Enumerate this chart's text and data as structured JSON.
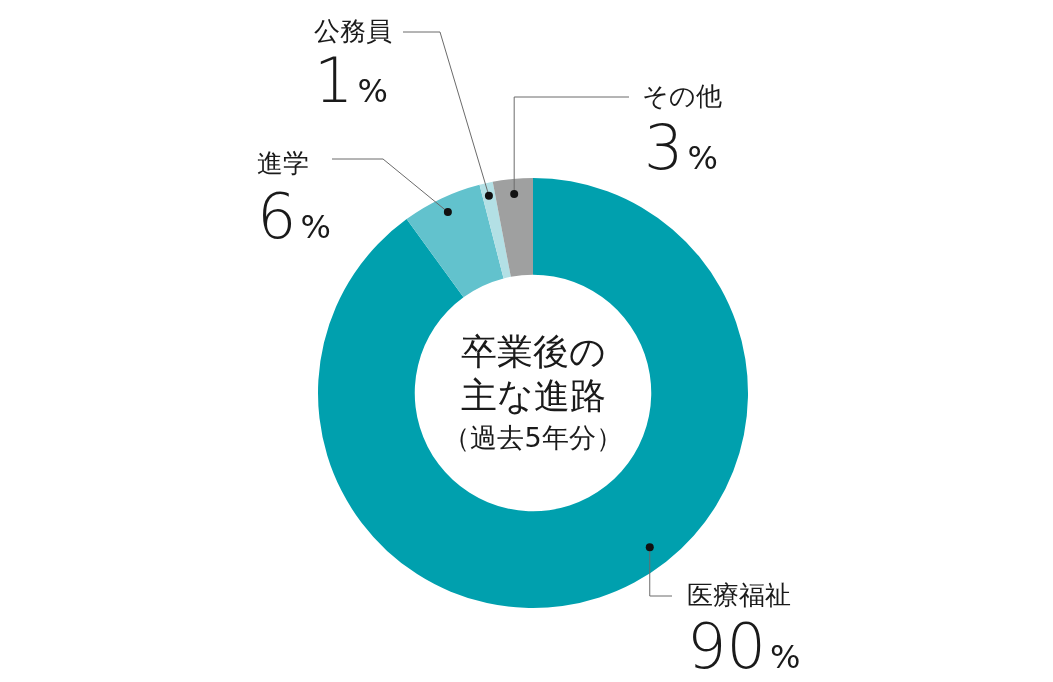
{
  "chart_data": {
    "type": "donut",
    "title": "卒業後の主な進路",
    "subtitle": "（過去5年分）",
    "categories": [
      "医療福祉",
      "進学",
      "公務員",
      "その他"
    ],
    "values": [
      90,
      6,
      1,
      3
    ],
    "colors": [
      "#00a0ae",
      "#62c2cd",
      "#b3e0e5",
      "#9fa0a0"
    ],
    "value_labels": [
      "90%",
      "6%",
      "1%",
      "3%"
    ]
  }
}
